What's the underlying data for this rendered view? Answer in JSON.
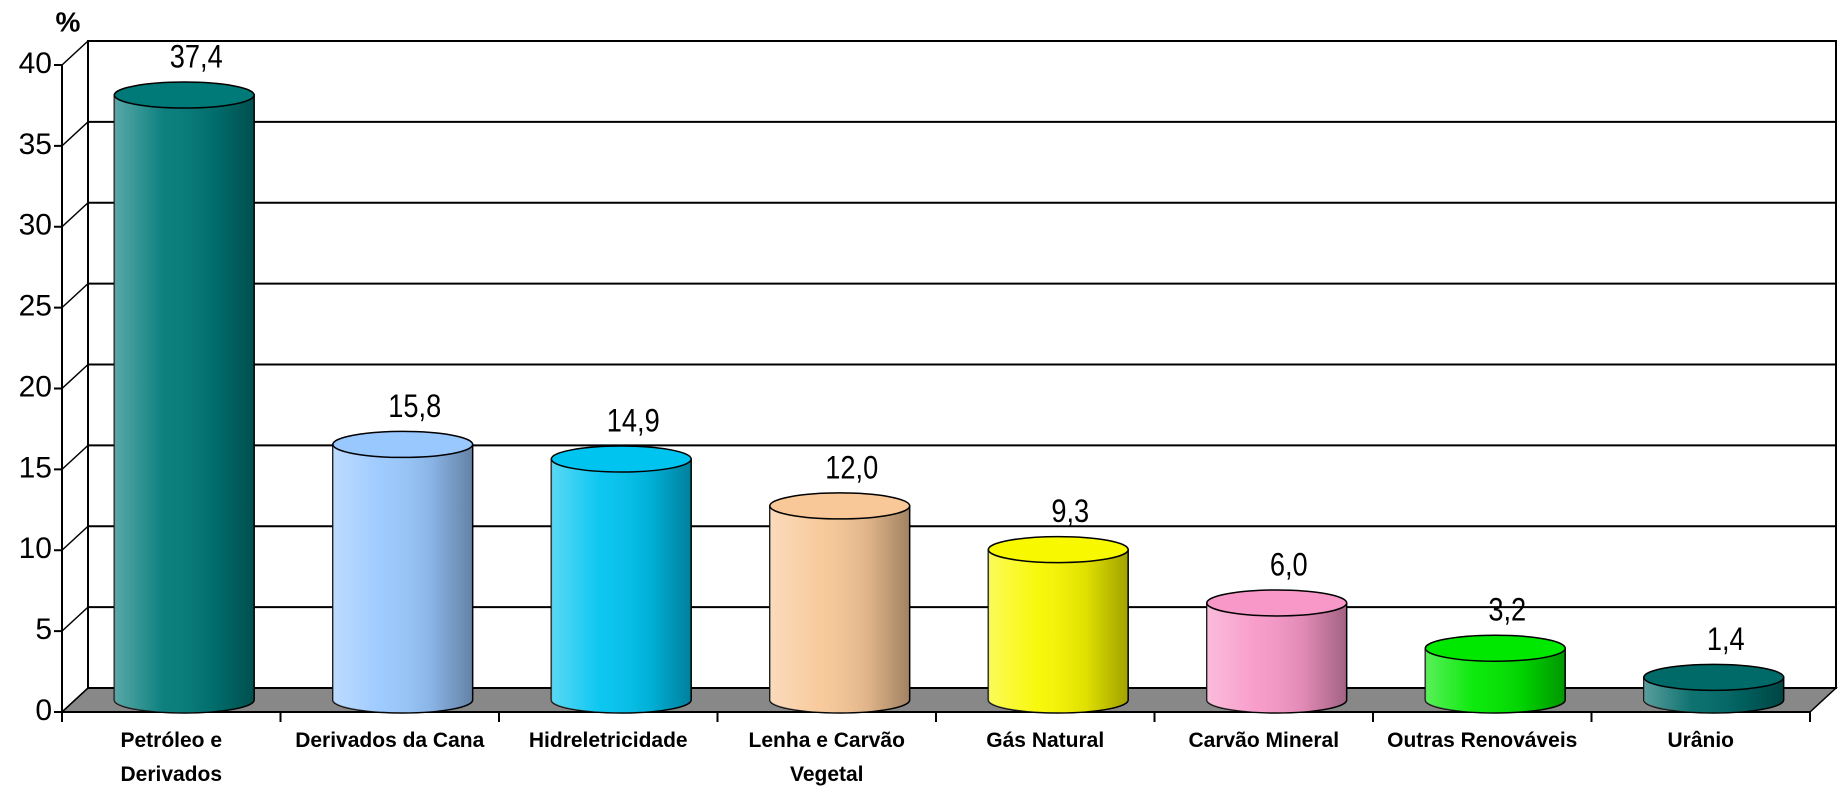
{
  "chart_data": {
    "type": "bar",
    "y_axis_label": "%",
    "categories": [
      "Petróleo e Derivados",
      "Derivados da Cana",
      "Hidreletricidade",
      "Lenha e Carvão Vegetal",
      "Gás Natural",
      "Carvão Mineral",
      "Outras Renováveis",
      "Urânio"
    ],
    "values": [
      37.4,
      15.8,
      14.9,
      12.0,
      9.3,
      6.0,
      3.2,
      1.4
    ],
    "value_labels": [
      "37,4",
      "15,8",
      "14,9",
      "12,0",
      "9,3",
      "6,0",
      "3,2",
      "1,4"
    ],
    "colors": [
      "#007a78",
      "#99c8ff",
      "#00c4f0",
      "#f8c898",
      "#f8f800",
      "#f898c8",
      "#00e800",
      "#006a68"
    ],
    "ylim": [
      0,
      40
    ],
    "yticks": [
      0,
      5,
      10,
      15,
      20,
      25,
      30,
      35,
      40
    ],
    "grid": true
  }
}
